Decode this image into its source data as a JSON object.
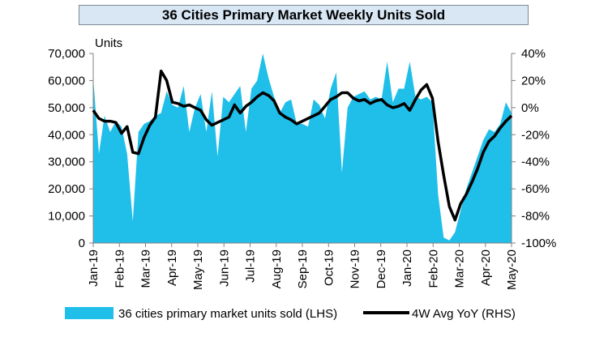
{
  "colors": {
    "area": "#1fbfea",
    "line": "#000000",
    "title_bg": "#d9e7f5"
  },
  "chart_data": {
    "type": "area+line",
    "title": "36 Cities Primary Market Weekly Units Sold",
    "left_unit_label": "Units",
    "left_axis": {
      "min": 0,
      "max": 70000,
      "ticks": [
        "0",
        "10,000",
        "20,000",
        "30,000",
        "40,000",
        "50,000",
        "60,000",
        "70,000"
      ]
    },
    "right_axis": {
      "min": -100,
      "max": 40,
      "ticks": [
        "-100%",
        "-80%",
        "-60%",
        "-40%",
        "-20%",
        "0%",
        "20%",
        "40%"
      ]
    },
    "x_labels": [
      "Jan-19",
      "Feb-19",
      "Mar-19",
      "Apr-19",
      "May-19",
      "Jun-19",
      "Jul-19",
      "Aug-19",
      "Sep-19",
      "Oct-19",
      "Nov-19",
      "Dec-19",
      "Jan-20",
      "Feb-20",
      "Mar-20",
      "Apr-20",
      "May-20"
    ],
    "legend_placement": "bottom",
    "series": [
      {
        "name": "36 cities primary market units sold (LHS)",
        "type": "area",
        "axis": "left",
        "values": [
          61000,
          33000,
          47000,
          41000,
          45000,
          43000,
          33000,
          8000,
          41000,
          44000,
          45000,
          47000,
          48000,
          56000,
          51000,
          50000,
          58000,
          41000,
          50000,
          55000,
          41000,
          56000,
          32000,
          54000,
          52000,
          55000,
          58000,
          41000,
          57000,
          60000,
          70000,
          61000,
          54000,
          48000,
          52000,
          53000,
          44000,
          44000,
          43000,
          53000,
          51000,
          46000,
          57000,
          63000,
          26000,
          50000,
          54000,
          55000,
          56000,
          53000,
          54000,
          53000,
          67000,
          52000,
          57000,
          57000,
          67000,
          54000,
          53000,
          54000,
          52000,
          18000,
          2000,
          1000,
          4000,
          12000,
          20000,
          26000,
          32000,
          38000,
          42000,
          41000,
          44000,
          52000,
          48000
        ]
      },
      {
        "name": "4W Avg YoY (RHS)",
        "type": "line",
        "axis": "right",
        "values": [
          -2,
          -8,
          -10,
          -10,
          -11,
          -19,
          -14,
          -33,
          -34,
          -22,
          -13,
          -7,
          27,
          20,
          4,
          3,
          1,
          2,
          0,
          -2,
          -9,
          -13,
          -11,
          -9,
          -7,
          2,
          -4,
          1,
          4,
          8,
          11,
          9,
          5,
          -4,
          -7,
          -9,
          -12,
          -10,
          -8,
          -6,
          -4,
          1,
          6,
          8,
          11,
          11,
          7,
          5,
          6,
          3,
          5,
          6,
          2,
          0,
          1,
          3,
          -2,
          6,
          13,
          17,
          7,
          -25,
          -50,
          -73,
          -83,
          -71,
          -64,
          -55,
          -45,
          -33,
          -25,
          -21,
          -15,
          -10,
          -6
        ]
      }
    ]
  }
}
